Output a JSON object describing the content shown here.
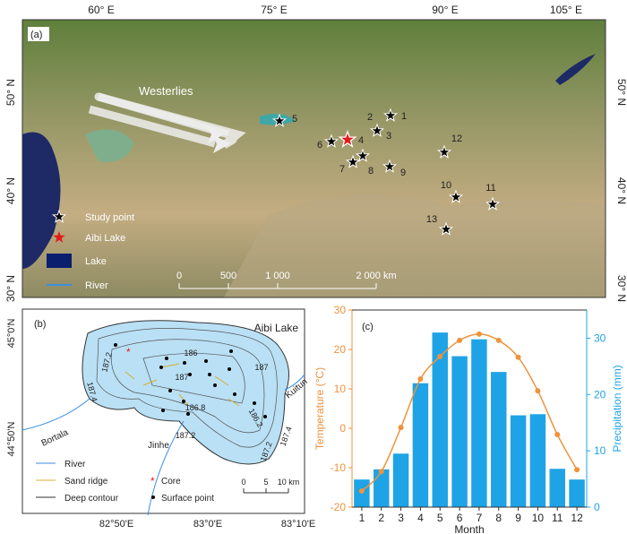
{
  "map_a": {
    "label": "(a)",
    "lon_labels": [
      "60° E",
      "75° E",
      "90° E",
      "105° E"
    ],
    "lat_labels": [
      "50° N",
      "40° N",
      "30° N"
    ],
    "westerlies": "Westerlies",
    "points": [
      "1",
      "2",
      "3",
      "4",
      "5",
      "6",
      "7",
      "8",
      "9",
      "10",
      "11",
      "12",
      "13"
    ],
    "legend": [
      "Study point",
      "Aibi Lake",
      "Lake",
      "River"
    ],
    "scale": [
      "0",
      "500",
      "1 000",
      "2 000 km"
    ]
  },
  "map_b": {
    "label": "(b)",
    "title": "Aibi Lake",
    "lat_labels": [
      "45°0'N",
      "44°50'N"
    ],
    "lon_labels": [
      "82°50'E",
      "83°0'E",
      "83°10'E"
    ],
    "contours": [
      "186",
      "187",
      "187",
      "187.2",
      "187.4",
      "186.8",
      "187.2",
      "186.2",
      "187.2",
      "187.4"
    ],
    "rivers": [
      "Bortala",
      "Jinhe",
      "Kuitun"
    ],
    "legend": [
      "River",
      "Sand ridge",
      "Deep contour",
      "Core",
      "Surface point"
    ],
    "scale": [
      "0",
      "5",
      "10 km"
    ]
  },
  "chart_data": {
    "type": "bar_line",
    "label": "(c)",
    "categories": [
      "1",
      "2",
      "3",
      "4",
      "5",
      "6",
      "7",
      "8",
      "9",
      "10",
      "11",
      "12"
    ],
    "x_label": "Month",
    "y_label": "Temperature (°C)",
    "y2_label": "Precipitation (mm)",
    "ylim": [
      -20,
      30
    ],
    "yticks": [
      -20,
      -10,
      0,
      10,
      20,
      30
    ],
    "y2lim": [
      0,
      35
    ],
    "y2ticks": [
      0,
      10,
      20,
      30
    ],
    "series": [
      {
        "name": "Temperature",
        "type": "line",
        "color": "#f0923a",
        "values": [
          -15.9,
          -11,
          0.2,
          12.5,
          18.2,
          22.3,
          23.9,
          22.3,
          18,
          9.5,
          -1.6,
          -10.5
        ]
      },
      {
        "name": "Precipitation",
        "type": "bar",
        "axis": "y2",
        "color": "#1ea4e6",
        "values": [
          4.9,
          6.7,
          9.5,
          22,
          31,
          26.8,
          29.8,
          24,
          16.3,
          16.5,
          6.8,
          4.9
        ]
      }
    ]
  }
}
